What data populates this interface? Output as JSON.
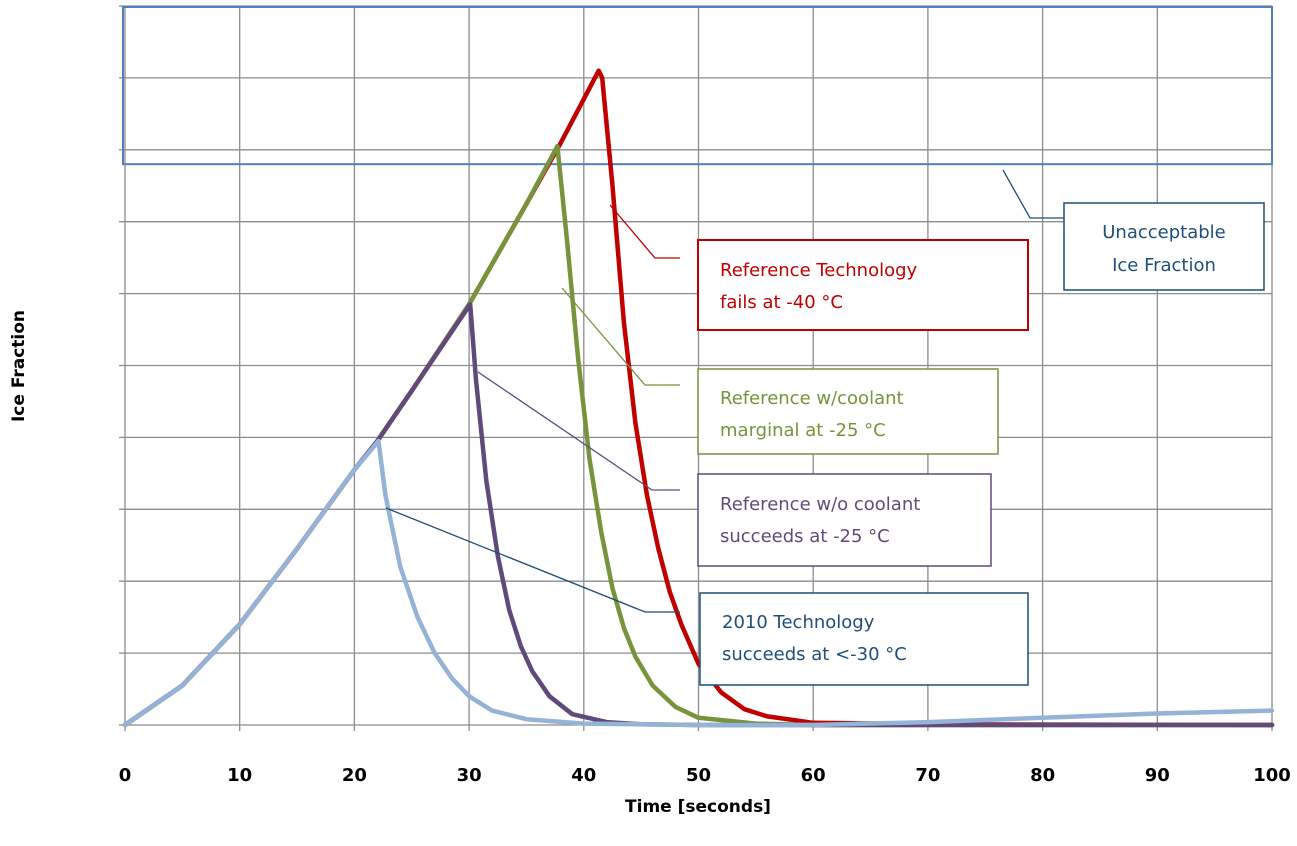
{
  "chart_data": {
    "type": "line",
    "title": "",
    "xlabel": "Time [seconds]",
    "ylabel": "Ice Fraction",
    "xlim": [
      0,
      100
    ],
    "ylim": [
      0,
      10
    ],
    "x_ticks": [
      0,
      10,
      20,
      30,
      40,
      50,
      60,
      70,
      80,
      90,
      100
    ],
    "y_tick_labels_shown": false,
    "grid": true,
    "unacceptable_region": {
      "y_from": 7.8,
      "y_to": 10,
      "label": "Unacceptable Ice Fraction"
    },
    "series": [
      {
        "color": "#c00000",
        "points": [
          [
            0,
            0
          ],
          [
            5,
            0.55
          ],
          [
            10,
            1.4
          ],
          [
            15,
            2.45
          ],
          [
            20,
            3.55
          ],
          [
            22,
            3.95
          ],
          [
            25,
            4.65
          ],
          [
            30,
            5.85
          ],
          [
            35,
            7.25
          ],
          [
            38,
            8.1
          ],
          [
            41.3,
            9.1
          ],
          [
            41.6,
            9.0
          ],
          [
            42.5,
            7.5
          ],
          [
            43.5,
            5.6
          ],
          [
            44.5,
            4.2
          ],
          [
            45.5,
            3.2
          ],
          [
            46.5,
            2.45
          ],
          [
            47.5,
            1.85
          ],
          [
            48.5,
            1.4
          ],
          [
            50,
            0.85
          ],
          [
            52,
            0.45
          ],
          [
            54,
            0.22
          ],
          [
            56,
            0.12
          ],
          [
            60,
            0.03
          ],
          [
            70,
            0.01
          ],
          [
            100,
            0
          ]
        ]
      },
      {
        "color": "#77933c",
        "points": [
          [
            0,
            0
          ],
          [
            5,
            0.55
          ],
          [
            10,
            1.4
          ],
          [
            15,
            2.45
          ],
          [
            20,
            3.55
          ],
          [
            22,
            3.95
          ],
          [
            25,
            4.65
          ],
          [
            30,
            5.85
          ],
          [
            35,
            7.25
          ],
          [
            37.7,
            8.05
          ],
          [
            38.5,
            6.8
          ],
          [
            39.5,
            5.1
          ],
          [
            40.5,
            3.7
          ],
          [
            41.5,
            2.7
          ],
          [
            42.5,
            1.9
          ],
          [
            43.5,
            1.35
          ],
          [
            44.5,
            0.95
          ],
          [
            46,
            0.55
          ],
          [
            48,
            0.25
          ],
          [
            50,
            0.1
          ],
          [
            55,
            0.02
          ],
          [
            60,
            0
          ],
          [
            100,
            0
          ]
        ]
      },
      {
        "color": "#604a7b",
        "points": [
          [
            0,
            0
          ],
          [
            5,
            0.55
          ],
          [
            10,
            1.4
          ],
          [
            15,
            2.45
          ],
          [
            20,
            3.55
          ],
          [
            22,
            3.95
          ],
          [
            25,
            4.65
          ],
          [
            30.1,
            5.85
          ],
          [
            30.6,
            4.8
          ],
          [
            31.5,
            3.4
          ],
          [
            32.5,
            2.35
          ],
          [
            33.5,
            1.6
          ],
          [
            34.5,
            1.1
          ],
          [
            35.5,
            0.75
          ],
          [
            37,
            0.4
          ],
          [
            39,
            0.15
          ],
          [
            42,
            0.04
          ],
          [
            45,
            0.01
          ],
          [
            50,
            0
          ],
          [
            100,
            0
          ]
        ]
      },
      {
        "color": "#95b3d7",
        "points": [
          [
            0,
            0
          ],
          [
            5,
            0.55
          ],
          [
            10,
            1.4
          ],
          [
            15,
            2.45
          ],
          [
            20,
            3.55
          ],
          [
            22.1,
            3.95
          ],
          [
            22.7,
            3.2
          ],
          [
            24,
            2.2
          ],
          [
            25.5,
            1.5
          ],
          [
            27,
            1.0
          ],
          [
            28.5,
            0.65
          ],
          [
            30,
            0.4
          ],
          [
            32,
            0.2
          ],
          [
            35,
            0.08
          ],
          [
            40,
            0.02
          ],
          [
            50,
            0
          ],
          [
            60,
            0
          ],
          [
            70,
            0.04
          ],
          [
            80,
            0.1
          ],
          [
            90,
            0.16
          ],
          [
            100,
            0.2
          ]
        ]
      }
    ]
  },
  "callouts": {
    "unacceptable": {
      "line1": "Unacceptable",
      "line2": "Ice Fraction",
      "color": "#1f4e79"
    },
    "reference_tech": {
      "line1": "Reference Technology",
      "line2": "fails at -40 °C",
      "color": "#c00000"
    },
    "ref_with_coolant": {
      "line1": "Reference w/coolant",
      "line2": "marginal at -25 °C",
      "color": "#77933c"
    },
    "ref_without_coolant": {
      "line1": "Reference w/o coolant",
      "line2": "succeeds at -25 °C",
      "color": "#604a7b"
    },
    "tech_2010": {
      "line1": "2010 Technology",
      "line2": "succeeds at <-30 °C",
      "color": "#1f4e79"
    }
  },
  "colors": {
    "grid": "#8c8c8c",
    "axis": "#8c8c8c",
    "region_border": "#4f81bd"
  }
}
